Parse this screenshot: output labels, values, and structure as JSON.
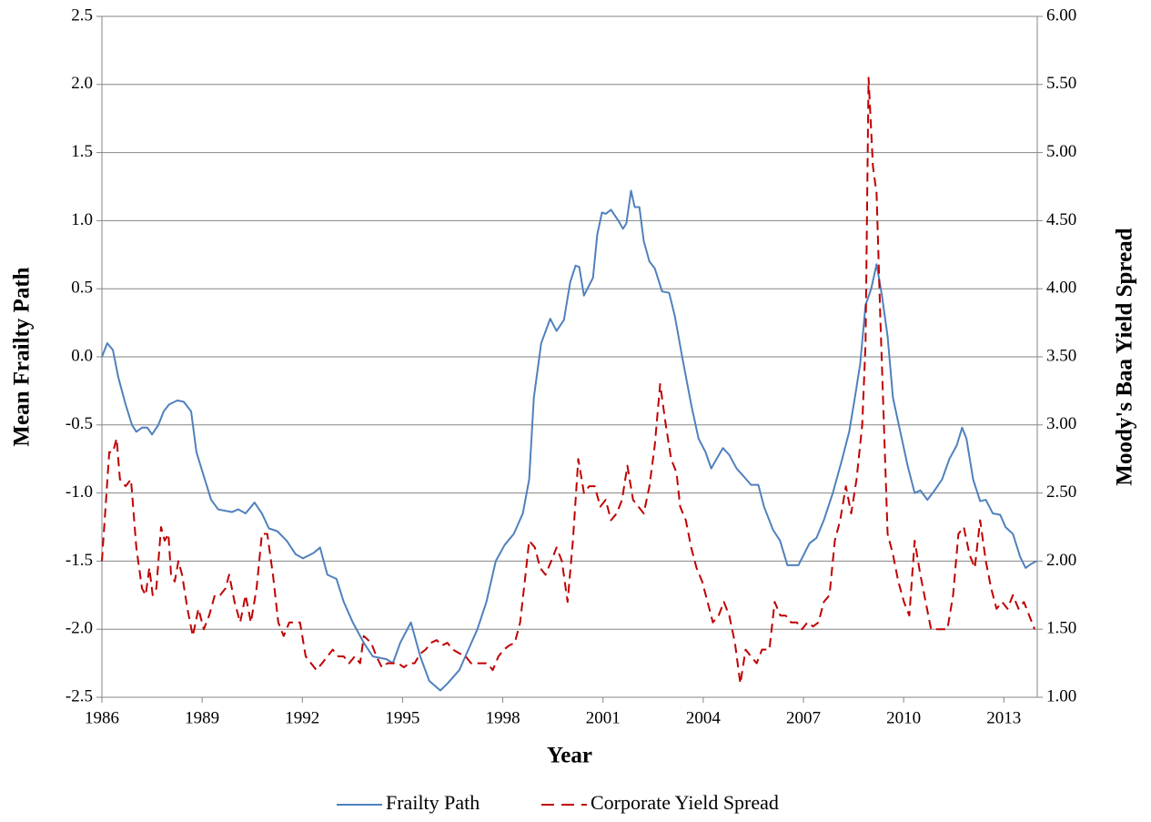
{
  "chart_data": {
    "type": "line",
    "xlabel": "Year",
    "ylabel": "Mean Frailty Path",
    "y2label": "Moody's Baa Yield Spread",
    "xlim": [
      1986,
      2014
    ],
    "xticks": [
      1986,
      1989,
      1992,
      1995,
      1998,
      2001,
      2004,
      2007,
      2010,
      2013
    ],
    "ylim": [
      -2.5,
      2.5
    ],
    "yticks": [
      -2.5,
      {
        "value": -2,
        "label": "-2.0"
      },
      -1.5,
      {
        "value": -1,
        "label": "-1.0"
      },
      -0.5,
      {
        "value": 0,
        "label": "0.0"
      },
      0.5,
      {
        "value": 1,
        "label": "1.0"
      },
      1.5,
      {
        "value": 2,
        "label": "2.0"
      },
      2.5
    ],
    "y2lim": [
      1,
      6
    ],
    "y2ticks": [
      {
        "value": 1,
        "label": "1.00"
      },
      {
        "value": 1.5,
        "label": "1.50"
      },
      {
        "value": 2,
        "label": "2.00"
      },
      {
        "value": 2.5,
        "label": "2.50"
      },
      {
        "value": 3,
        "label": "3.00"
      },
      {
        "value": 3.5,
        "label": "3.50"
      },
      {
        "value": 4,
        "label": "4.00"
      },
      {
        "value": 4.5,
        "label": "4.50"
      },
      {
        "value": 5,
        "label": "5.00"
      },
      {
        "value": 5.5,
        "label": "5.50"
      },
      {
        "value": 6,
        "label": "6.00"
      }
    ],
    "grid": true,
    "legend": "bottom",
    "series": [
      {
        "name": "Frailty Path",
        "color": "#4f81bd",
        "dashed": false,
        "x": [
          1986.0,
          1986.16,
          1986.33,
          1986.49,
          1986.71,
          1986.9,
          1987.03,
          1987.2,
          1987.36,
          1987.5,
          1987.69,
          1987.85,
          1988.01,
          1988.26,
          1988.45,
          1988.67,
          1988.83,
          1989.08,
          1989.27,
          1989.48,
          1989.89,
          1990.08,
          1990.3,
          1990.57,
          1990.79,
          1991.0,
          1991.25,
          1991.53,
          1991.8,
          1992.02,
          1992.34,
          1992.53,
          1992.75,
          1993.02,
          1993.24,
          1993.51,
          1993.84,
          1994.11,
          1994.52,
          1994.71,
          1994.93,
          1995.25,
          1995.53,
          1995.8,
          1996.13,
          1996.34,
          1996.7,
          1996.97,
          1997.24,
          1997.51,
          1997.79,
          1998.06,
          1998.33,
          1998.6,
          1998.79,
          1998.93,
          1999.15,
          1999.42,
          1999.61,
          1999.83,
          2000.02,
          2000.18,
          2000.29,
          2000.43,
          2000.7,
          2000.83,
          2000.97,
          2001.08,
          2001.24,
          2001.46,
          2001.6,
          2001.7,
          2001.84,
          2001.95,
          2002.09,
          2002.22,
          2002.39,
          2002.55,
          2002.77,
          2002.98,
          2003.15,
          2003.37,
          2003.64,
          2003.86,
          2004.07,
          2004.24,
          2004.4,
          2004.59,
          2004.78,
          2005.0,
          2005.22,
          2005.43,
          2005.65,
          2005.82,
          2006.09,
          2006.3,
          2006.52,
          2006.85,
          2007.18,
          2007.39,
          2007.61,
          2007.88,
          2008.16,
          2008.37,
          2008.54,
          2008.7,
          2008.86,
          2009.03,
          2009.19,
          2009.35,
          2009.52,
          2009.68,
          2009.9,
          2010.12,
          2010.33,
          2010.5,
          2010.71,
          2010.93,
          2011.15,
          2011.37,
          2011.59,
          2011.75,
          2011.88,
          2012.08,
          2012.29,
          2012.46,
          2012.67,
          2012.89,
          2013.05,
          2013.27,
          2013.49,
          2013.65,
          2013.82,
          2013.98
        ],
        "values": [
          0.0,
          0.1,
          0.05,
          -0.15,
          -0.35,
          -0.5,
          -0.55,
          -0.52,
          -0.52,
          -0.57,
          -0.5,
          -0.4,
          -0.35,
          -0.32,
          -0.33,
          -0.4,
          -0.7,
          -0.9,
          -1.05,
          -1.12,
          -1.14,
          -1.12,
          -1.15,
          -1.07,
          -1.15,
          -1.26,
          -1.28,
          -1.35,
          -1.45,
          -1.48,
          -1.44,
          -1.4,
          -1.6,
          -1.63,
          -1.8,
          -1.95,
          -2.1,
          -2.2,
          -2.22,
          -2.25,
          -2.1,
          -1.95,
          -2.2,
          -2.38,
          -2.45,
          -2.4,
          -2.3,
          -2.15,
          -2.0,
          -1.8,
          -1.5,
          -1.38,
          -1.3,
          -1.15,
          -0.9,
          -0.3,
          0.1,
          0.28,
          0.19,
          0.27,
          0.55,
          0.67,
          0.66,
          0.45,
          0.58,
          0.9,
          1.06,
          1.05,
          1.08,
          1.0,
          0.94,
          0.98,
          1.22,
          1.1,
          1.1,
          0.85,
          0.7,
          0.65,
          0.48,
          0.47,
          0.3,
          0.0,
          -0.35,
          -0.6,
          -0.7,
          -0.82,
          -0.75,
          -0.67,
          -0.72,
          -0.82,
          -0.88,
          -0.94,
          -0.94,
          -1.1,
          -1.27,
          -1.35,
          -1.53,
          -1.53,
          -1.37,
          -1.33,
          -1.2,
          -1.0,
          -0.75,
          -0.55,
          -0.3,
          -0.05,
          0.38,
          0.5,
          0.68,
          0.45,
          0.15,
          -0.3,
          -0.55,
          -0.8,
          -1.0,
          -0.98,
          -1.05,
          -0.98,
          -0.9,
          -0.75,
          -0.65,
          -0.52,
          -0.6,
          -0.9,
          -1.06,
          -1.05,
          -1.15,
          -1.16,
          -1.25,
          -1.3,
          -1.47,
          -1.55,
          -1.52,
          -1.5
        ]
      },
      {
        "name": "Corporate Yield Spread",
        "color": "#c00000",
        "dashed": true,
        "axis": "y2",
        "x": [
          1986.0,
          1986.11,
          1986.22,
          1986.33,
          1986.44,
          1986.54,
          1986.71,
          1986.87,
          1987.03,
          1987.2,
          1987.31,
          1987.42,
          1987.52,
          1987.63,
          1987.77,
          1987.88,
          1987.99,
          1988.07,
          1988.18,
          1988.29,
          1988.4,
          1988.56,
          1988.72,
          1988.89,
          1989.05,
          1989.21,
          1989.38,
          1989.54,
          1989.7,
          1989.81,
          1989.97,
          1990.14,
          1990.3,
          1990.46,
          1990.63,
          1990.79,
          1990.95,
          1991.12,
          1991.28,
          1991.44,
          1991.61,
          1991.77,
          1991.93,
          1992.1,
          1992.26,
          1992.42,
          1992.59,
          1992.75,
          1992.91,
          1993.08,
          1993.24,
          1993.4,
          1993.57,
          1993.73,
          1993.84,
          1994.06,
          1994.22,
          1994.38,
          1994.55,
          1994.71,
          1994.87,
          1995.04,
          1995.2,
          1995.36,
          1995.53,
          1995.69,
          1995.85,
          1996.02,
          1996.18,
          1996.34,
          1996.51,
          1996.72,
          1996.89,
          1997.05,
          1997.21,
          1997.38,
          1997.54,
          1997.7,
          1997.87,
          1998.03,
          1998.19,
          1998.36,
          1998.52,
          1998.68,
          1998.79,
          1998.96,
          1999.12,
          1999.28,
          1999.45,
          1999.61,
          1999.77,
          1999.94,
          2000.1,
          2000.26,
          2000.43,
          2000.59,
          2000.75,
          2000.92,
          2001.08,
          2001.24,
          2001.41,
          2001.57,
          2001.73,
          2001.9,
          2002.06,
          2002.22,
          2002.39,
          2002.55,
          2002.71,
          2002.88,
          2003.04,
          2003.2,
          2003.31,
          2003.48,
          2003.64,
          2003.8,
          2003.97,
          2004.13,
          2004.29,
          2004.46,
          2004.62,
          2004.78,
          2004.95,
          2005.11,
          2005.27,
          2005.43,
          2005.6,
          2005.76,
          2005.98,
          2006.14,
          2006.31,
          2006.47,
          2006.63,
          2006.8,
          2006.96,
          2007.12,
          2007.29,
          2007.45,
          2007.61,
          2007.78,
          2007.94,
          2008.1,
          2008.27,
          2008.43,
          2008.59,
          2008.76,
          2008.86,
          2008.95,
          2009.08,
          2009.19,
          2009.3,
          2009.41,
          2009.52,
          2009.68,
          2009.84,
          2010.01,
          2010.17,
          2010.33,
          2010.5,
          2010.66,
          2010.82,
          2010.99,
          2011.15,
          2011.31,
          2011.48,
          2011.64,
          2011.8,
          2011.97,
          2012.13,
          2012.29,
          2012.46,
          2012.62,
          2012.78,
          2012.95,
          2013.11,
          2013.27,
          2013.44,
          2013.6,
          2013.76,
          2013.92
        ],
        "values": [
          2.0,
          2.4,
          2.8,
          2.8,
          2.9,
          2.6,
          2.55,
          2.6,
          2.1,
          1.8,
          1.75,
          1.95,
          1.75,
          1.8,
          2.25,
          2.15,
          2.2,
          1.9,
          1.85,
          2.0,
          1.9,
          1.65,
          1.45,
          1.65,
          1.5,
          1.6,
          1.75,
          1.75,
          1.8,
          1.9,
          1.7,
          1.55,
          1.75,
          1.55,
          1.8,
          2.2,
          2.2,
          1.9,
          1.55,
          1.45,
          1.55,
          1.55,
          1.55,
          1.3,
          1.25,
          1.2,
          1.25,
          1.3,
          1.35,
          1.3,
          1.3,
          1.25,
          1.3,
          1.25,
          1.45,
          1.4,
          1.3,
          1.22,
          1.25,
          1.25,
          1.25,
          1.22,
          1.25,
          1.25,
          1.32,
          1.35,
          1.4,
          1.42,
          1.38,
          1.4,
          1.35,
          1.32,
          1.3,
          1.25,
          1.25,
          1.25,
          1.25,
          1.2,
          1.3,
          1.35,
          1.38,
          1.4,
          1.55,
          1.9,
          2.15,
          2.1,
          1.95,
          1.9,
          2.0,
          2.1,
          2.0,
          1.7,
          2.15,
          2.75,
          2.5,
          2.55,
          2.55,
          2.4,
          2.45,
          2.3,
          2.35,
          2.45,
          2.7,
          2.45,
          2.4,
          2.35,
          2.55,
          2.85,
          3.3,
          3.0,
          2.75,
          2.65,
          2.4,
          2.3,
          2.1,
          1.95,
          1.85,
          1.7,
          1.55,
          1.6,
          1.7,
          1.6,
          1.4,
          1.1,
          1.35,
          1.3,
          1.25,
          1.35,
          1.35,
          1.7,
          1.6,
          1.6,
          1.55,
          1.55,
          1.5,
          1.55,
          1.52,
          1.55,
          1.7,
          1.75,
          2.15,
          2.3,
          2.55,
          2.35,
          2.6,
          3.0,
          3.6,
          5.55,
          4.9,
          4.7,
          3.8,
          3.0,
          2.2,
          2.05,
          1.85,
          1.7,
          1.6,
          2.15,
          1.9,
          1.7,
          1.5,
          1.5,
          1.5,
          1.5,
          1.75,
          2.2,
          2.25,
          2.05,
          1.95,
          2.3,
          2.0,
          1.8,
          1.65,
          1.7,
          1.65,
          1.75,
          1.65,
          1.7,
          1.6,
          1.5
        ]
      }
    ]
  }
}
